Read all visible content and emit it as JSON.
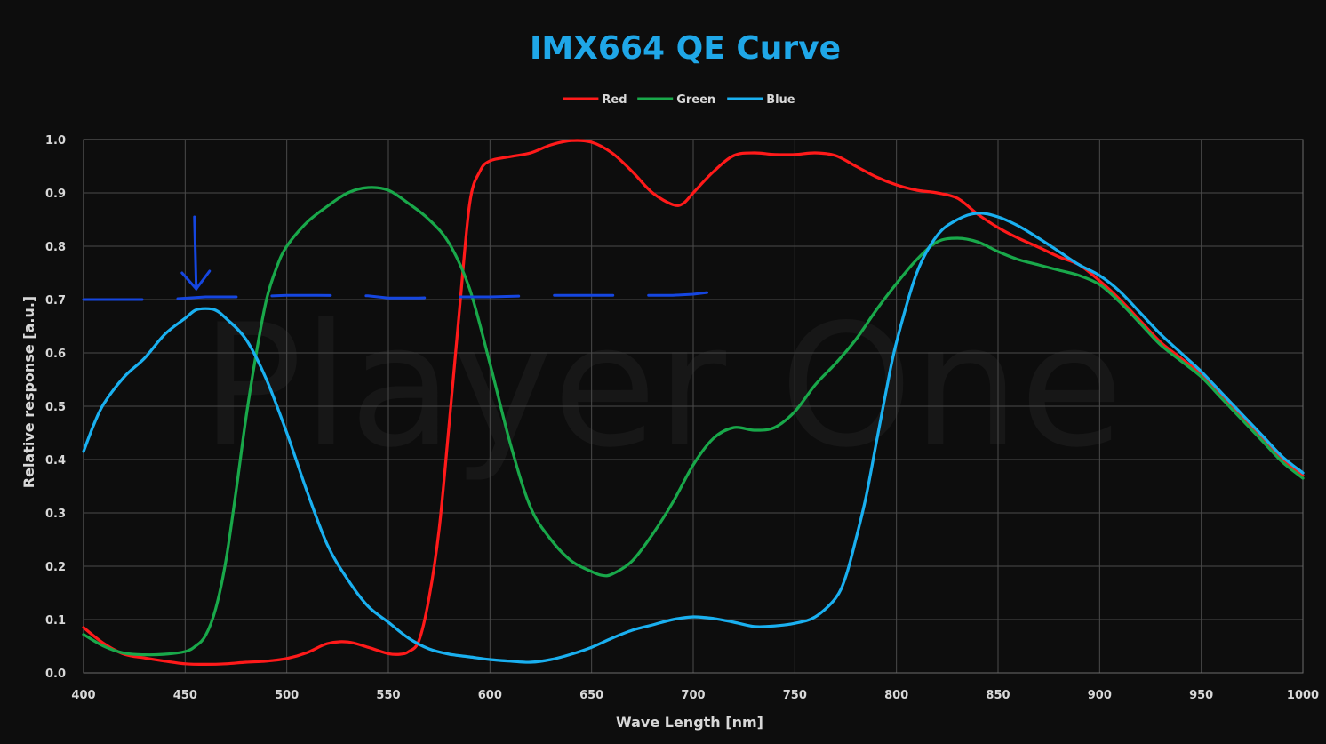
{
  "chart_data": {
    "type": "line",
    "title": "IMX664 QE Curve",
    "xlabel": "Wave Length [nm]",
    "ylabel": "Relative response [a.u.]",
    "xlim": [
      400,
      1000
    ],
    "ylim": [
      0,
      1.0
    ],
    "x_ticks": [
      "400",
      "450",
      "500",
      "550",
      "600",
      "650",
      "700",
      "750",
      "800",
      "850",
      "900",
      "950",
      "1000"
    ],
    "y_ticks": [
      "0.0",
      "0.1",
      "0.2",
      "0.3",
      "0.4",
      "0.5",
      "0.6",
      "0.7",
      "0.8",
      "0.9",
      "1.0"
    ],
    "grid": true,
    "legend_position": "top-center",
    "watermark": "Player One",
    "series": [
      {
        "name": "Red",
        "color": "#ff1a1a",
        "points": [
          [
            400,
            0.085
          ],
          [
            410,
            0.055
          ],
          [
            420,
            0.035
          ],
          [
            430,
            0.028
          ],
          [
            440,
            0.022
          ],
          [
            450,
            0.017
          ],
          [
            460,
            0.016
          ],
          [
            470,
            0.017
          ],
          [
            480,
            0.02
          ],
          [
            490,
            0.022
          ],
          [
            500,
            0.027
          ],
          [
            510,
            0.038
          ],
          [
            520,
            0.055
          ],
          [
            530,
            0.058
          ],
          [
            540,
            0.048
          ],
          [
            550,
            0.036
          ],
          [
            556,
            0.035
          ],
          [
            560,
            0.04
          ],
          [
            565,
            0.06
          ],
          [
            570,
            0.14
          ],
          [
            575,
            0.27
          ],
          [
            580,
            0.47
          ],
          [
            585,
            0.68
          ],
          [
            590,
            0.88
          ],
          [
            595,
            0.94
          ],
          [
            600,
            0.96
          ],
          [
            610,
            0.968
          ],
          [
            620,
            0.975
          ],
          [
            630,
            0.99
          ],
          [
            640,
            0.998
          ],
          [
            650,
            0.995
          ],
          [
            660,
            0.975
          ],
          [
            670,
            0.94
          ],
          [
            680,
            0.9
          ],
          [
            690,
            0.878
          ],
          [
            695,
            0.88
          ],
          [
            700,
            0.9
          ],
          [
            710,
            0.94
          ],
          [
            720,
            0.97
          ],
          [
            730,
            0.975
          ],
          [
            740,
            0.972
          ],
          [
            750,
            0.972
          ],
          [
            760,
            0.975
          ],
          [
            770,
            0.97
          ],
          [
            780,
            0.95
          ],
          [
            790,
            0.93
          ],
          [
            800,
            0.915
          ],
          [
            810,
            0.905
          ],
          [
            820,
            0.9
          ],
          [
            830,
            0.89
          ],
          [
            840,
            0.86
          ],
          [
            850,
            0.835
          ],
          [
            860,
            0.815
          ],
          [
            870,
            0.798
          ],
          [
            880,
            0.78
          ],
          [
            890,
            0.765
          ],
          [
            900,
            0.735
          ],
          [
            910,
            0.7
          ],
          [
            920,
            0.66
          ],
          [
            930,
            0.62
          ],
          [
            940,
            0.59
          ],
          [
            950,
            0.56
          ],
          [
            960,
            0.52
          ],
          [
            970,
            0.48
          ],
          [
            980,
            0.44
          ],
          [
            990,
            0.4
          ],
          [
            1000,
            0.37
          ]
        ]
      },
      {
        "name": "Green",
        "color": "#19a84a",
        "points": [
          [
            400,
            0.072
          ],
          [
            410,
            0.05
          ],
          [
            420,
            0.037
          ],
          [
            430,
            0.034
          ],
          [
            440,
            0.035
          ],
          [
            450,
            0.04
          ],
          [
            455,
            0.05
          ],
          [
            460,
            0.07
          ],
          [
            465,
            0.12
          ],
          [
            470,
            0.21
          ],
          [
            475,
            0.34
          ],
          [
            480,
            0.48
          ],
          [
            485,
            0.6
          ],
          [
            490,
            0.7
          ],
          [
            495,
            0.76
          ],
          [
            500,
            0.8
          ],
          [
            510,
            0.845
          ],
          [
            520,
            0.875
          ],
          [
            530,
            0.9
          ],
          [
            540,
            0.91
          ],
          [
            550,
            0.905
          ],
          [
            560,
            0.88
          ],
          [
            570,
            0.85
          ],
          [
            580,
            0.805
          ],
          [
            590,
            0.72
          ],
          [
            600,
            0.58
          ],
          [
            610,
            0.43
          ],
          [
            620,
            0.31
          ],
          [
            630,
            0.25
          ],
          [
            640,
            0.21
          ],
          [
            650,
            0.19
          ],
          [
            655,
            0.183
          ],
          [
            660,
            0.185
          ],
          [
            670,
            0.21
          ],
          [
            680,
            0.26
          ],
          [
            690,
            0.32
          ],
          [
            700,
            0.39
          ],
          [
            710,
            0.44
          ],
          [
            720,
            0.46
          ],
          [
            730,
            0.455
          ],
          [
            740,
            0.46
          ],
          [
            750,
            0.49
          ],
          [
            760,
            0.54
          ],
          [
            770,
            0.58
          ],
          [
            780,
            0.625
          ],
          [
            790,
            0.68
          ],
          [
            800,
            0.73
          ],
          [
            810,
            0.775
          ],
          [
            820,
            0.808
          ],
          [
            830,
            0.815
          ],
          [
            840,
            0.808
          ],
          [
            850,
            0.79
          ],
          [
            860,
            0.775
          ],
          [
            870,
            0.765
          ],
          [
            880,
            0.755
          ],
          [
            890,
            0.745
          ],
          [
            900,
            0.728
          ],
          [
            910,
            0.695
          ],
          [
            920,
            0.655
          ],
          [
            930,
            0.615
          ],
          [
            940,
            0.585
          ],
          [
            950,
            0.555
          ],
          [
            960,
            0.515
          ],
          [
            970,
            0.475
          ],
          [
            980,
            0.435
          ],
          [
            990,
            0.395
          ],
          [
            1000,
            0.365
          ]
        ]
      },
      {
        "name": "Blue",
        "color": "#1ab0f0",
        "points": [
          [
            400,
            0.415
          ],
          [
            405,
            0.465
          ],
          [
            410,
            0.505
          ],
          [
            420,
            0.555
          ],
          [
            430,
            0.59
          ],
          [
            440,
            0.635
          ],
          [
            450,
            0.665
          ],
          [
            455,
            0.68
          ],
          [
            460,
            0.683
          ],
          [
            465,
            0.68
          ],
          [
            470,
            0.665
          ],
          [
            480,
            0.625
          ],
          [
            490,
            0.55
          ],
          [
            500,
            0.45
          ],
          [
            510,
            0.34
          ],
          [
            520,
            0.24
          ],
          [
            530,
            0.175
          ],
          [
            540,
            0.125
          ],
          [
            550,
            0.095
          ],
          [
            560,
            0.065
          ],
          [
            570,
            0.045
          ],
          [
            580,
            0.035
          ],
          [
            590,
            0.03
          ],
          [
            600,
            0.025
          ],
          [
            610,
            0.022
          ],
          [
            620,
            0.02
          ],
          [
            630,
            0.025
          ],
          [
            640,
            0.035
          ],
          [
            650,
            0.048
          ],
          [
            660,
            0.065
          ],
          [
            670,
            0.08
          ],
          [
            680,
            0.09
          ],
          [
            690,
            0.1
          ],
          [
            700,
            0.105
          ],
          [
            710,
            0.102
          ],
          [
            720,
            0.095
          ],
          [
            730,
            0.087
          ],
          [
            740,
            0.088
          ],
          [
            750,
            0.093
          ],
          [
            760,
            0.105
          ],
          [
            770,
            0.14
          ],
          [
            775,
            0.18
          ],
          [
            780,
            0.25
          ],
          [
            785,
            0.33
          ],
          [
            790,
            0.43
          ],
          [
            795,
            0.53
          ],
          [
            800,
            0.62
          ],
          [
            810,
            0.75
          ],
          [
            820,
            0.82
          ],
          [
            830,
            0.85
          ],
          [
            840,
            0.862
          ],
          [
            850,
            0.855
          ],
          [
            860,
            0.838
          ],
          [
            870,
            0.815
          ],
          [
            880,
            0.79
          ],
          [
            890,
            0.765
          ],
          [
            900,
            0.745
          ],
          [
            910,
            0.715
          ],
          [
            920,
            0.675
          ],
          [
            930,
            0.635
          ],
          [
            940,
            0.6
          ],
          [
            950,
            0.565
          ],
          [
            960,
            0.525
          ],
          [
            970,
            0.485
          ],
          [
            980,
            0.445
          ],
          [
            990,
            0.405
          ],
          [
            1000,
            0.375
          ]
        ]
      }
    ],
    "annotation": {
      "color": "#1546e0",
      "dashed_line_points": [
        [
          400,
          0.7
        ],
        [
          440,
          0.7
        ],
        [
          460,
          0.705
        ],
        [
          480,
          0.705
        ],
        [
          500,
          0.708
        ],
        [
          515,
          0.708
        ],
        [
          540,
          0.707
        ],
        [
          550,
          0.703
        ],
        [
          565,
          0.703
        ],
        [
          580,
          0.705
        ],
        [
          600,
          0.705
        ],
        [
          630,
          0.708
        ],
        [
          660,
          0.708
        ],
        [
          690,
          0.708
        ],
        [
          700,
          0.71
        ],
        [
          715,
          0.717
        ]
      ],
      "arrow_x": 455,
      "arrow_y_from": 0.855,
      "arrow_y_to": 0.72
    }
  }
}
